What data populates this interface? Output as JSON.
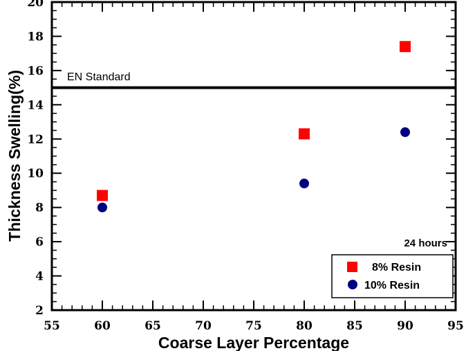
{
  "chart_data": {
    "type": "scatter",
    "xlabel": "Coarse Layer Percentage",
    "ylabel": "Thickness Swelling(%)",
    "xlim": [
      55,
      95
    ],
    "ylim": [
      2,
      20
    ],
    "x_ticks": [
      55,
      60,
      65,
      70,
      75,
      80,
      85,
      90,
      95
    ],
    "y_ticks": [
      2,
      4,
      6,
      8,
      10,
      12,
      14,
      16,
      18,
      20
    ],
    "grid": false,
    "legend_position": "bottom-right",
    "series": [
      {
        "name": "8% Resin",
        "marker": "square",
        "color": "#ff0000",
        "points": [
          {
            "x": 60,
            "y": 8.7
          },
          {
            "x": 80,
            "y": 12.3
          },
          {
            "x": 90,
            "y": 17.4
          }
        ]
      },
      {
        "name": "10% Resin",
        "marker": "circle",
        "color": "#000080",
        "points": [
          {
            "x": 60,
            "y": 8.0
          },
          {
            "x": 80,
            "y": 9.4
          },
          {
            "x": 90,
            "y": 12.4
          }
        ]
      }
    ],
    "reference_line": {
      "y": 15,
      "label": "EN Standard",
      "color": "#000000"
    },
    "annotations": [
      {
        "text": "24 hours"
      }
    ]
  }
}
